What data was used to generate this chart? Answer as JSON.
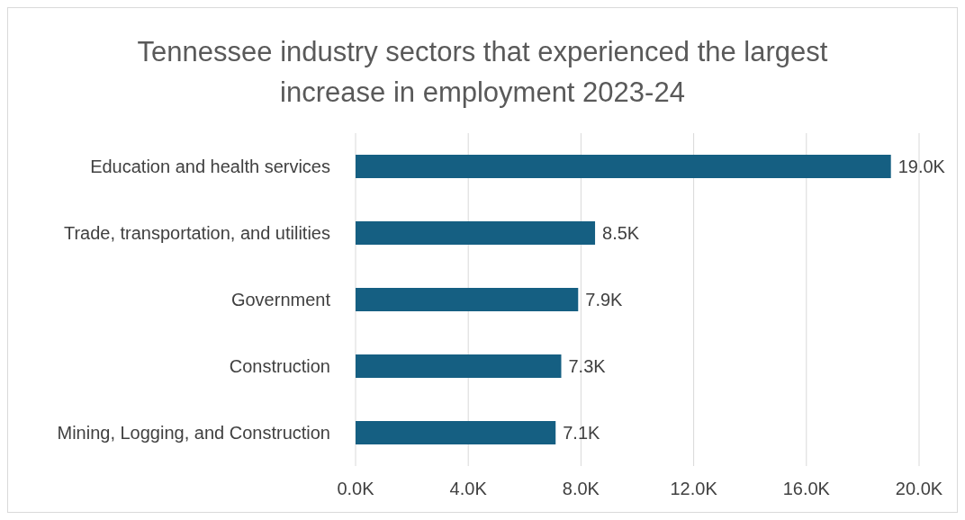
{
  "chart_data": {
    "type": "bar",
    "orientation": "horizontal",
    "title": "Tennessee industry sectors that experienced the largest increase in employment 2023-24",
    "categories": [
      "Education and health services",
      "Trade, transportation, and utilities",
      "Government",
      "Construction",
      "Mining, Logging, and Construction"
    ],
    "values": [
      19000,
      8500,
      7900,
      7300,
      7100
    ],
    "value_labels": [
      "19.0K",
      "8.5K",
      "7.9K",
      "7.3K",
      "7.1K"
    ],
    "color": "#155f82",
    "xlim": [
      0,
      20000
    ],
    "xticks": [
      {
        "value": 0,
        "label": "0.0K"
      },
      {
        "value": 4000,
        "label": "4.0K"
      },
      {
        "value": 8000,
        "label": "8.0K"
      },
      {
        "value": 12000,
        "label": "12.0K"
      },
      {
        "value": 16000,
        "label": "16.0K"
      },
      {
        "value": 20000,
        "label": "20.0K"
      }
    ],
    "grid": "x",
    "legend": false
  }
}
